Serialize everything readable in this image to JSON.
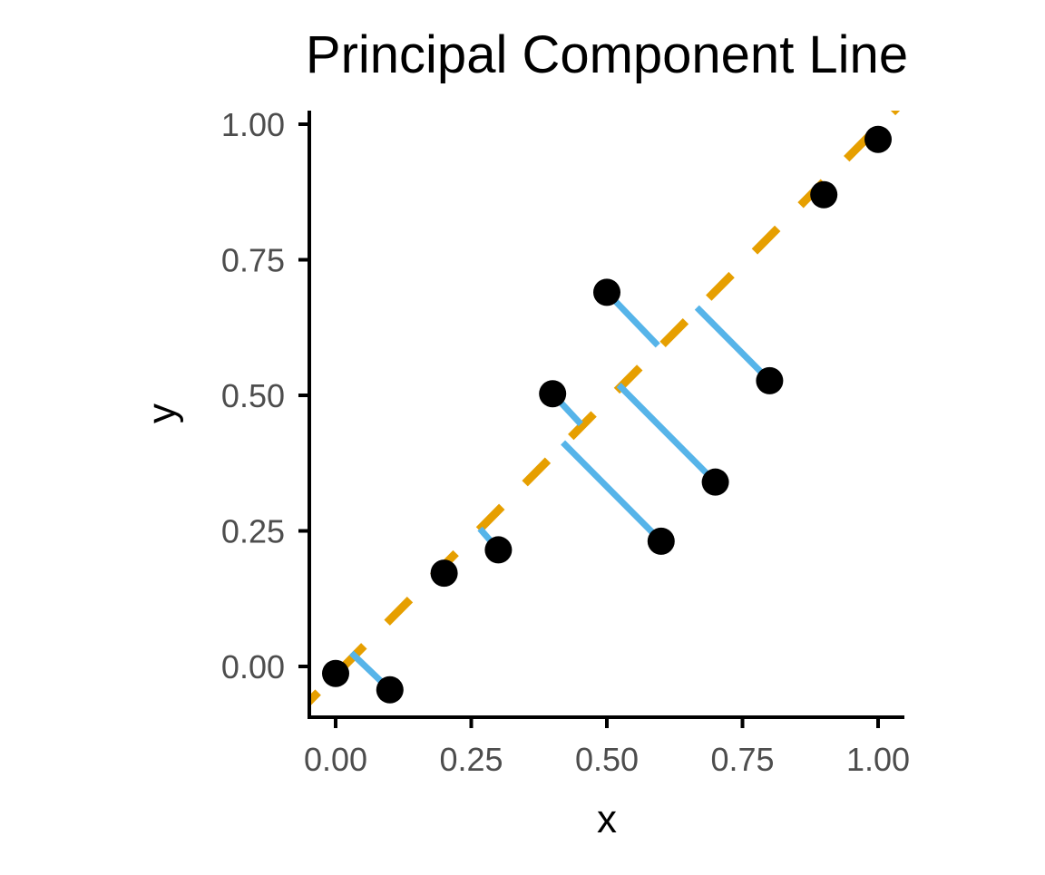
{
  "chart_data": {
    "type": "scatter",
    "title": "Principal Component Line",
    "xlabel": "x",
    "ylabel": "y",
    "xlim": [
      -0.05,
      1.05
    ],
    "ylim": [
      -0.09,
      1.02
    ],
    "x_ticks": [
      0,
      0.25,
      0.5,
      0.75,
      1.0
    ],
    "y_ticks": [
      0,
      0.25,
      0.5,
      0.75,
      1.0
    ],
    "x_tick_labels": [
      "0.00",
      "0.25",
      "0.50",
      "0.75",
      "1.00"
    ],
    "y_tick_labels": [
      "0.00",
      "0.25",
      "0.50",
      "0.75",
      "1.00"
    ],
    "grid": false,
    "points": [
      {
        "x": 0.0,
        "y": -0.013
      },
      {
        "x": 0.1,
        "y": -0.043
      },
      {
        "x": 0.2,
        "y": 0.172
      },
      {
        "x": 0.3,
        "y": 0.215
      },
      {
        "x": 0.4,
        "y": 0.503
      },
      {
        "x": 0.5,
        "y": 0.69
      },
      {
        "x": 0.6,
        "y": 0.231
      },
      {
        "x": 0.7,
        "y": 0.34
      },
      {
        "x": 0.8,
        "y": 0.527
      },
      {
        "x": 0.9,
        "y": 0.87
      },
      {
        "x": 1.0,
        "y": 0.972
      }
    ],
    "pc_line": {
      "intercept": -0.015,
      "slope": 1.01,
      "style": "dashed"
    },
    "residuals": [
      {
        "x1": 0.1,
        "y1": -0.043,
        "x2": 0.029,
        "y2": 0.025
      },
      {
        "x1": 0.3,
        "y1": 0.215,
        "x2": 0.266,
        "y2": 0.254
      },
      {
        "x1": 0.4,
        "y1": 0.503,
        "x2": 0.452,
        "y2": 0.447
      },
      {
        "x1": 0.5,
        "y1": 0.69,
        "x2": 0.594,
        "y2": 0.592
      },
      {
        "x1": 0.6,
        "y1": 0.231,
        "x2": 0.419,
        "y2": 0.413
      },
      {
        "x1": 0.7,
        "y1": 0.34,
        "x2": 0.522,
        "y2": 0.519
      },
      {
        "x1": 0.8,
        "y1": 0.527,
        "x2": 0.666,
        "y2": 0.662
      }
    ],
    "colors": {
      "points": "#000000",
      "pc_line": "#E69F00",
      "residuals": "#56B4E9",
      "axis": "#000000",
      "tick_text": "#4d4d4d"
    }
  }
}
